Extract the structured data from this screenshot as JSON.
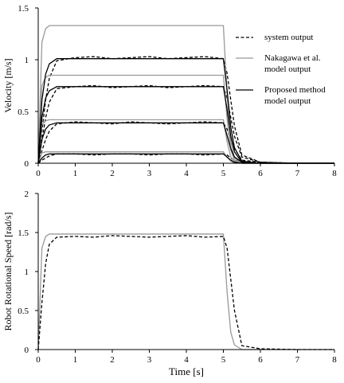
{
  "chart_data": [
    {
      "type": "line",
      "ylabel": "Velocity [m/s]",
      "legend": "upper right",
      "x": [
        0,
        0.1,
        0.2,
        0.3,
        0.5,
        1,
        1.5,
        2,
        2.5,
        3,
        3.5,
        4,
        4.5,
        5,
        5.1,
        5.2,
        5.3,
        5.5,
        6,
        7,
        8
      ],
      "xlim": [
        0,
        8
      ],
      "xticks": [
        0,
        1,
        2,
        3,
        4,
        5,
        6,
        7,
        8
      ],
      "ylim": [
        0,
        1.5
      ],
      "yticks": [
        0,
        0.5,
        1,
        1.5
      ],
      "series": [
        {
          "name": "system output",
          "color": "#000000",
          "dash": "dashed",
          "values": [
            [
              0,
              0.03,
              0.05,
              0.07,
              0.09,
              0.09,
              0.08,
              0.09,
              0.09,
              0.08,
              0.09,
              0.09,
              0.08,
              0.09,
              0.08,
              0.05,
              0.03,
              0.01,
              0,
              0,
              0
            ],
            [
              0,
              0.12,
              0.23,
              0.31,
              0.38,
              0.4,
              0.39,
              0.38,
              0.4,
              0.39,
              0.38,
              0.39,
              0.4,
              0.39,
              0.33,
              0.23,
              0.14,
              0.03,
              0.01,
              0,
              0
            ],
            [
              0,
              0.22,
              0.44,
              0.59,
              0.72,
              0.74,
              0.75,
              0.73,
              0.74,
              0.75,
              0.73,
              0.74,
              0.75,
              0.74,
              0.63,
              0.44,
              0.26,
              0.06,
              0.01,
              0,
              0
            ],
            [
              0,
              0.31,
              0.61,
              0.82,
              0.99,
              1.02,
              1.03,
              1.01,
              1.02,
              1.03,
              1.01,
              1.02,
              1.03,
              1.01,
              0.87,
              0.61,
              0.36,
              0.08,
              0.01,
              0,
              0
            ]
          ]
        },
        {
          "name": "Nakagawa et al. model output",
          "color": "#999999",
          "dash": "solid",
          "values": [
            [
              0,
              0.1,
              0.11,
              0.11,
              0.11,
              0.11,
              0.11,
              0.11,
              0.11,
              0.11,
              0.11,
              0.11,
              0.11,
              0.11,
              0.06,
              0.02,
              0,
              0,
              0,
              0,
              0
            ],
            [
              0,
              0.37,
              0.41,
              0.42,
              0.42,
              0.42,
              0.42,
              0.42,
              0.42,
              0.42,
              0.42,
              0.42,
              0.42,
              0.42,
              0.21,
              0.06,
              0.02,
              0,
              0,
              0,
              0
            ],
            [
              0,
              0.75,
              0.83,
              0.85,
              0.85,
              0.85,
              0.85,
              0.85,
              0.85,
              0.85,
              0.85,
              0.85,
              0.85,
              0.85,
              0.43,
              0.13,
              0.03,
              0,
              0,
              0,
              0
            ],
            [
              0,
              1.17,
              1.3,
              1.33,
              1.33,
              1.33,
              1.33,
              1.33,
              1.33,
              1.33,
              1.33,
              1.33,
              1.33,
              1.33,
              0.67,
              0.2,
              0.05,
              0,
              0,
              0,
              0
            ]
          ]
        },
        {
          "name": "Proposed method model output",
          "color": "#000000",
          "dash": "solid",
          "values": [
            [
              0,
              0.05,
              0.08,
              0.09,
              0.09,
              0.09,
              0.09,
              0.09,
              0.09,
              0.09,
              0.09,
              0.09,
              0.09,
              0.09,
              0.06,
              0.03,
              0.01,
              0,
              0,
              0,
              0
            ],
            [
              0,
              0.23,
              0.33,
              0.37,
              0.39,
              0.39,
              0.39,
              0.39,
              0.39,
              0.39,
              0.39,
              0.39,
              0.39,
              0.39,
              0.27,
              0.14,
              0.06,
              0.01,
              0,
              0,
              0
            ],
            [
              0,
              0.44,
              0.63,
              0.7,
              0.74,
              0.74,
              0.74,
              0.74,
              0.74,
              0.74,
              0.74,
              0.74,
              0.74,
              0.74,
              0.52,
              0.26,
              0.11,
              0.01,
              0,
              0,
              0
            ],
            [
              0,
              0.61,
              0.86,
              0.96,
              1.01,
              1.01,
              1.01,
              1.01,
              1.01,
              1.01,
              1.01,
              1.01,
              1.01,
              1.01,
              0.71,
              0.35,
              0.15,
              0.02,
              0,
              0,
              0
            ]
          ]
        }
      ]
    },
    {
      "type": "line",
      "ylabel": "Robot Rotational Speed [rad/s]",
      "xlabel": "Time [s]",
      "x": [
        0,
        0.1,
        0.2,
        0.3,
        0.5,
        1,
        1.5,
        2,
        2.5,
        3,
        3.5,
        4,
        4.5,
        5,
        5.1,
        5.2,
        5.3,
        5.5,
        6,
        7,
        8
      ],
      "xlim": [
        0,
        8
      ],
      "xticks": [
        0,
        1,
        2,
        3,
        4,
        5,
        6,
        7,
        8
      ],
      "ylim": [
        0,
        2
      ],
      "yticks": [
        0,
        0.5,
        1,
        1.5,
        2
      ],
      "series": [
        {
          "color": "#999999",
          "dash": "solid",
          "values": [
            [
              0,
              1.3,
              1.45,
              1.48,
              1.48,
              1.48,
              1.48,
              1.48,
              1.48,
              1.48,
              1.48,
              1.48,
              1.48,
              1.48,
              0.74,
              0.22,
              0.06,
              0,
              0,
              0,
              0
            ]
          ]
        },
        {
          "color": "#000000",
          "dash": "dashed",
          "values": [
            [
              0,
              0.6,
              1.1,
              1.35,
              1.44,
              1.45,
              1.44,
              1.46,
              1.45,
              1.44,
              1.45,
              1.46,
              1.44,
              1.45,
              1.3,
              0.9,
              0.5,
              0.05,
              0.01,
              0,
              0
            ]
          ]
        }
      ]
    }
  ]
}
